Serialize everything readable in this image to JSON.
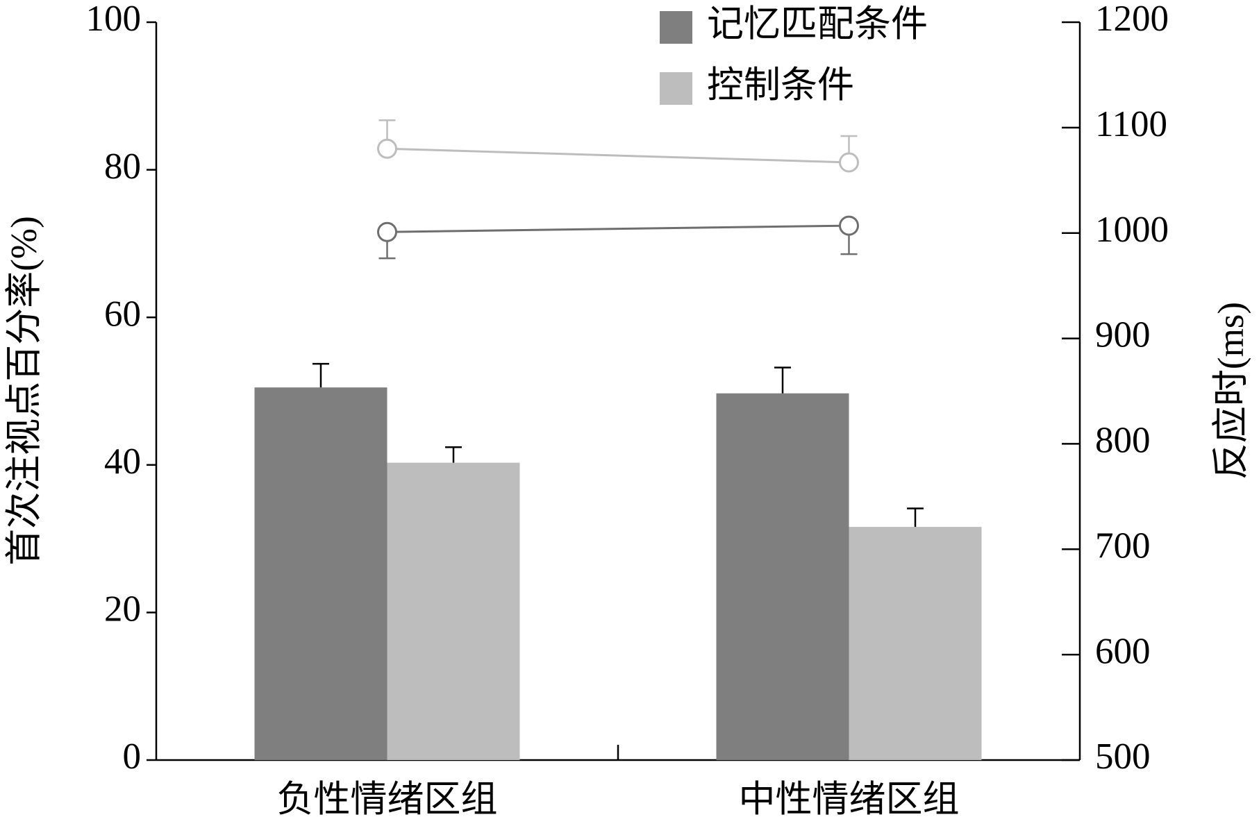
{
  "chart_data": {
    "type": "bar",
    "categories": [
      "负性情绪区组",
      "中性情绪区组"
    ],
    "ylabel": "首次注视点百分率(%)",
    "y2label": "反应时(ms)",
    "ylim": [
      0,
      100
    ],
    "yticks": [
      0,
      20,
      40,
      60,
      80,
      100
    ],
    "y2lim": [
      500,
      1200
    ],
    "y2ticks": [
      500,
      600,
      700,
      800,
      900,
      1000,
      1100,
      1200
    ],
    "series": [
      {
        "name": "记忆匹配条件",
        "color": "#7f7f7f",
        "values": [
          50.5,
          49.7
        ],
        "errors": [
          3.2,
          3.5
        ],
        "error_side": "up"
      },
      {
        "name": "控制条件",
        "color": "#bdbdbd",
        "values": [
          40.3,
          31.6
        ],
        "errors": [
          2.1,
          2.5
        ],
        "error_side": "up"
      },
      {
        "type": "line",
        "axis": "y2",
        "color": "#6e6e6e",
        "values": [
          1001,
          1007
        ],
        "errors": [
          25,
          27
        ],
        "error_side": "down"
      },
      {
        "type": "line",
        "axis": "y2",
        "color": "#bdbdbd",
        "values": [
          1080,
          1067
        ],
        "errors": [
          27,
          25
        ],
        "error_side": "up"
      }
    ]
  }
}
